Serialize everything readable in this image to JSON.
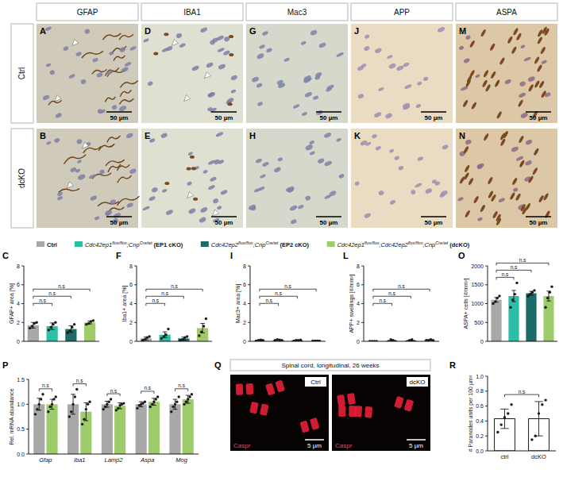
{
  "column_headers": [
    "GFAP",
    "IBA1",
    "Mac3",
    "APP",
    "ASPA"
  ],
  "row_labels": [
    "Ctrl",
    "dcKO"
  ],
  "image_panels": [
    [
      "A",
      "B"
    ],
    [
      "D",
      "E"
    ],
    [
      "G",
      "H"
    ],
    [
      "J",
      "K"
    ],
    [
      "M",
      "N"
    ]
  ],
  "scale_bar": "50 µm",
  "legend": {
    "entries": [
      {
        "color": "#a8a8a8",
        "parts": [
          {
            "text": "Ctrl",
            "style": "bold"
          }
        ]
      },
      {
        "color": "#2cbfa8",
        "parts": [
          {
            "text": "Cdc42ep1",
            "style": "italic"
          },
          {
            "text": "flox/flox",
            "style": "sup"
          },
          {
            "text": ";Cnp",
            "style": "italic"
          },
          {
            "text": "Cre/wt",
            "style": "sup"
          },
          {
            "text": " (EP1 cKO)",
            "style": "bold"
          }
        ]
      },
      {
        "color": "#1b6b68",
        "parts": [
          {
            "text": "Cdc42ep2",
            "style": "italic"
          },
          {
            "text": "flox/flox",
            "style": "sup"
          },
          {
            "text": ";Cnp",
            "style": "italic"
          },
          {
            "text": "Cre/wt",
            "style": "sup"
          },
          {
            "text": " (EP2 cKO)",
            "style": "bold"
          }
        ]
      },
      {
        "color": "#9fcc6b",
        "parts": [
          {
            "text": "Cdc42ep1",
            "style": "italic"
          },
          {
            "text": "flox/flox",
            "style": "sup"
          },
          {
            "text": ";Cdc42ep2",
            "style": "italic"
          },
          {
            "text": "flox/flox",
            "style": "sup"
          },
          {
            "text": ";Cnp",
            "style": "italic"
          },
          {
            "text": "Cre/wt",
            "style": "sup"
          },
          {
            "text": " (dcKO)",
            "style": "bold"
          }
        ]
      }
    ]
  },
  "confocal": {
    "panel_label": "Q",
    "title": "Spinal cord, longitudinal, 26 weeks",
    "labels": [
      "Ctrl",
      "dcKO"
    ],
    "stain": "Caspr",
    "scale_bar": "5 µm"
  },
  "chart_data": [
    {
      "type": "bar",
      "panel_label": "C",
      "y_label": "GFAP+ area [%]",
      "categories": [
        null,
        null,
        null,
        null
      ],
      "values": [
        1.7,
        1.6,
        1.3,
        2.0
      ],
      "errors": [
        0.3,
        0.35,
        0.35,
        0.15
      ],
      "points": [
        [
          1.4,
          1.6,
          1.9,
          2.0
        ],
        [
          1.2,
          1.5,
          1.8,
          2.0
        ],
        [
          0.9,
          1.1,
          1.5,
          1.8
        ],
        [
          1.8,
          1.9,
          2.1,
          2.2
        ]
      ],
      "colors": [
        "#a8a8a8",
        "#2cbfa8",
        "#1b6b68",
        "#9fcc6b"
      ],
      "ylim": [
        0,
        8
      ],
      "yticks": [
        0,
        2,
        4,
        6,
        8
      ],
      "comparisons": [
        {
          "from": 0,
          "to": 1,
          "label": "n.s"
        },
        {
          "from": 0,
          "to": 2,
          "label": "n.s"
        },
        {
          "from": 0,
          "to": 3,
          "label": "n.s"
        }
      ]
    },
    {
      "type": "bar",
      "panel_label": "F",
      "y_label": "Iba1+ area [%]",
      "categories": [
        null,
        null,
        null,
        null
      ],
      "values": [
        0.3,
        0.7,
        0.3,
        1.4
      ],
      "errors": [
        0.15,
        0.3,
        0.15,
        0.5
      ],
      "points": [
        [
          0.1,
          0.2,
          0.4,
          0.5
        ],
        [
          0.3,
          0.5,
          0.7,
          1.3
        ],
        [
          0.1,
          0.2,
          0.4,
          0.5
        ],
        [
          0.6,
          1.0,
          1.6,
          2.4
        ]
      ],
      "colors": [
        "#a8a8a8",
        "#2cbfa8",
        "#1b6b68",
        "#9fcc6b"
      ],
      "ylim": [
        0,
        8
      ],
      "yticks": [
        0,
        2,
        4,
        6,
        8
      ],
      "comparisons": [
        {
          "from": 0,
          "to": 1,
          "label": "n.s"
        },
        {
          "from": 0,
          "to": 2,
          "label": "n.s"
        },
        {
          "from": 0,
          "to": 3,
          "label": "n.s"
        }
      ]
    },
    {
      "type": "bar",
      "panel_label": "I",
      "y_label": "Mac3+ area [%]",
      "categories": [
        null,
        null,
        null,
        null
      ],
      "values": [
        0.1,
        0.15,
        0.1,
        0.05
      ],
      "errors": [
        0.03,
        0.03,
        0.03,
        0.01
      ],
      "points": [
        [
          0.05,
          0.1,
          0.15,
          0.1
        ],
        [
          0.1,
          0.2,
          0.15,
          0.1
        ],
        [
          0.05,
          0.1,
          0.1,
          0.15
        ],
        [
          0.05,
          0.05,
          0.05,
          0.05
        ]
      ],
      "colors": [
        "#a8a8a8",
        "#2cbfa8",
        "#1b6b68",
        "#9fcc6b"
      ],
      "ylim": [
        0,
        8
      ],
      "yticks": [
        0,
        2,
        4,
        6,
        8
      ],
      "comparisons": [
        {
          "from": 0,
          "to": 1,
          "label": "n.s"
        },
        {
          "from": 0,
          "to": 2,
          "label": "n.s"
        },
        {
          "from": 0,
          "to": 3,
          "label": "n.s"
        }
      ]
    },
    {
      "type": "bar",
      "panel_label": "L",
      "y_label": "APP+ swellings [#/mm²]",
      "categories": [
        null,
        null,
        null,
        null
      ],
      "values": [
        0,
        0.08,
        0.08,
        0.13
      ],
      "errors": [
        0,
        0.05,
        0.05,
        0.03
      ],
      "points": [
        [
          0,
          0,
          0,
          0
        ],
        [
          0,
          0.2,
          0.1,
          0
        ],
        [
          0,
          0.1,
          0.2,
          0
        ],
        [
          0.1,
          0.1,
          0.2,
          0.1
        ]
      ],
      "colors": [
        "#a8a8a8",
        "#2cbfa8",
        "#1b6b68",
        "#9fcc6b"
      ],
      "ylim": [
        0,
        8
      ],
      "yticks": [
        0,
        2,
        4,
        6,
        8
      ],
      "comparisons": [
        {
          "from": 0,
          "to": 1,
          "label": "n.s"
        },
        {
          "from": 0,
          "to": 2,
          "label": "n.s"
        },
        {
          "from": 0,
          "to": 3,
          "label": "n.s"
        }
      ]
    },
    {
      "type": "bar",
      "panel_label": "O",
      "y_label": "ASPA+ cells [#/mm²]",
      "categories": [
        null,
        null,
        null,
        null
      ],
      "values": [
        1100,
        1200,
        1275,
        1200
      ],
      "errors": [
        60,
        150,
        50,
        130
      ],
      "points": [
        [
          1000,
          1050,
          1150,
          1200
        ],
        [
          900,
          1100,
          1250,
          1550
        ],
        [
          1200,
          1250,
          1300,
          1350
        ],
        [
          900,
          1150,
          1300,
          1450
        ]
      ],
      "colors": [
        "#a8a8a8",
        "#2cbfa8",
        "#1b6b68",
        "#9fcc6b"
      ],
      "ylim": [
        0,
        2000
      ],
      "yticks": [
        0,
        500,
        1000,
        1500,
        2000
      ],
      "comparisons": [
        {
          "from": 0,
          "to": 1,
          "label": "n.s"
        },
        {
          "from": 0,
          "to": 2,
          "label": "n.s"
        },
        {
          "from": 0,
          "to": 3,
          "label": "n.s"
        }
      ]
    },
    {
      "type": "bar",
      "panel_label": "P",
      "y_label": "Rel. mRNA abundance",
      "categories": [
        "Gfap",
        "Iba1",
        "Lamp2",
        "Aspa",
        "Mog"
      ],
      "series": [
        {
          "color": "#a8a8a8",
          "values": [
            1.0,
            1.0,
            1.0,
            1.0,
            1.0
          ],
          "errors": [
            0.12,
            0.2,
            0.06,
            0.05,
            0.1
          ],
          "points": [
            [
              0.8,
              0.9,
              1.0,
              1.1,
              1.2
            ],
            [
              0.75,
              0.85,
              1.0,
              1.15,
              1.3
            ],
            [
              0.9,
              0.95,
              1.0,
              1.05,
              1.1
            ],
            [
              0.92,
              0.98,
              1.0,
              1.02,
              1.05
            ],
            [
              0.85,
              0.95,
              1.0,
              1.05,
              1.15
            ]
          ]
        },
        {
          "color": "#9fcc6b",
          "values": [
            1.0,
            0.85,
            0.97,
            1.05,
            1.1
          ],
          "errors": [
            0.1,
            0.18,
            0.06,
            0.07,
            0.08
          ],
          "points": [
            [
              0.85,
              0.95,
              1.0,
              1.1,
              1.15
            ],
            [
              0.6,
              0.7,
              0.9,
              1.0,
              1.05
            ],
            [
              0.88,
              0.92,
              0.98,
              1.0,
              1.02
            ],
            [
              0.95,
              1.0,
              1.05,
              1.1,
              1.15
            ],
            [
              1.0,
              1.05,
              1.1,
              1.15,
              1.2
            ]
          ]
        }
      ],
      "ylim": [
        0,
        1.5
      ],
      "yticks": [
        {
          "value": 0,
          "label": "0.0"
        },
        0.5,
        {
          "value": 1,
          "label": "1.0"
        },
        1.5
      ],
      "comparisons": [
        {
          "category": 0,
          "label": "n.s"
        },
        {
          "category": 1,
          "label": "n.s"
        },
        {
          "category": 2,
          "label": "n.s"
        },
        {
          "category": 3,
          "label": "n.s"
        },
        {
          "category": 4,
          "label": "n.s"
        }
      ]
    },
    {
      "type": "bar",
      "panel_label": "R",
      "y_label": "# Paranodes units per 100 µm²",
      "categories": [
        "ctrl",
        "dcKO"
      ],
      "values": [
        0.43,
        0.43
      ],
      "errors": [
        0.13,
        0.23
      ],
      "points": [
        [
          0.25,
          0.35,
          0.45,
          0.5,
          0.62
        ],
        [
          0.15,
          0.2,
          0.5,
          0.62,
          0.68
        ]
      ],
      "colors": [
        "#ffffff",
        "#ffffff"
      ],
      "ylim": [
        0,
        1
      ],
      "yticks": [
        {
          "value": 0,
          "label": "0.0"
        },
        0.2,
        0.4,
        0.6,
        0.8,
        {
          "value": 1,
          "label": "1.0"
        }
      ],
      "comparisons": [
        {
          "from": 0,
          "to": 1,
          "label": "n.s"
        }
      ]
    }
  ]
}
